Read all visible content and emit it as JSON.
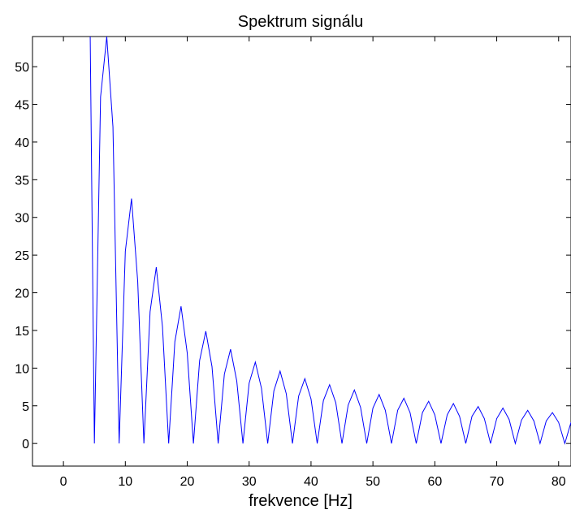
{
  "chart_data": {
    "type": "line",
    "title": "Spektrum signálu",
    "xlabel": "frekvence [Hz]",
    "ylabel": "",
    "xlim": [
      -5,
      82
    ],
    "ylim": [
      -3,
      54
    ],
    "xticks": [
      0,
      10,
      20,
      30,
      40,
      50,
      60,
      70,
      80
    ],
    "yticks": [
      0,
      5,
      10,
      15,
      20,
      25,
      30,
      35,
      40,
      45,
      50
    ],
    "grid": false,
    "line_color": "#0000ff",
    "series": [
      {
        "x": [
          4,
          5,
          6,
          7,
          8,
          9,
          10,
          11,
          12,
          13,
          14,
          15,
          16,
          17,
          18,
          19,
          20,
          21,
          22,
          23,
          24,
          25,
          26,
          27,
          28,
          29,
          30,
          31,
          32,
          33,
          34,
          35,
          36,
          37,
          38,
          39,
          40,
          41,
          42,
          43,
          44,
          45,
          46,
          47,
          48,
          49,
          50,
          51,
          52,
          53,
          54,
          55,
          56,
          57,
          58,
          59,
          60,
          61,
          62,
          63,
          64,
          65,
          66,
          67,
          68,
          69,
          70,
          71,
          72,
          73,
          74,
          75,
          76,
          77,
          78,
          79,
          80,
          81,
          82
        ],
        "y": [
          80,
          0,
          46,
          54,
          42,
          0,
          25.5,
          32.5,
          21.5,
          0,
          17.5,
          23.4,
          15.5,
          0,
          13.5,
          18.2,
          12,
          0,
          11,
          14.9,
          10.2,
          0,
          9.2,
          12.5,
          8.3,
          0,
          8,
          10.8,
          7.3,
          0,
          7,
          9.6,
          6.6,
          0,
          6.3,
          8.6,
          5.9,
          0,
          5.7,
          7.8,
          5.4,
          0,
          5.1,
          7.1,
          4.8,
          0,
          4.7,
          6.5,
          4.4,
          0,
          4.4,
          6,
          4.1,
          0,
          4.1,
          5.6,
          3.8,
          0,
          3.8,
          5.3,
          3.6,
          0,
          3.6,
          4.9,
          3.3,
          0,
          3.3,
          4.7,
          3.2,
          0,
          3.1,
          4.4,
          3,
          0,
          3,
          4.1,
          2.8,
          0,
          2.8
        ]
      }
    ]
  }
}
